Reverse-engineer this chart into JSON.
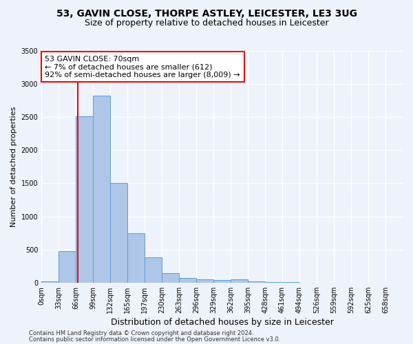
{
  "title1": "53, GAVIN CLOSE, THORPE ASTLEY, LEICESTER, LE3 3UG",
  "title2": "Size of property relative to detached houses in Leicester",
  "xlabel": "Distribution of detached houses by size in Leicester",
  "ylabel": "Number of detached properties",
  "categories": [
    "0sqm",
    "33sqm",
    "66sqm",
    "99sqm",
    "132sqm",
    "165sqm",
    "197sqm",
    "230sqm",
    "263sqm",
    "296sqm",
    "329sqm",
    "362sqm",
    "395sqm",
    "428sqm",
    "461sqm",
    "494sqm",
    "526sqm",
    "559sqm",
    "592sqm",
    "625sqm",
    "658sqm"
  ],
  "bar_heights": [
    20,
    480,
    2510,
    2820,
    1510,
    750,
    380,
    145,
    75,
    55,
    40,
    45,
    20,
    10,
    5,
    3,
    2,
    1,
    1,
    0,
    0
  ],
  "bar_color": "#aec6e8",
  "bar_edgecolor": "#5a9fd4",
  "ylim": [
    0,
    3500
  ],
  "yticks": [
    0,
    500,
    1000,
    1500,
    2000,
    2500,
    3000,
    3500
  ],
  "annotation_box_text": "53 GAVIN CLOSE: 70sqm\n← 7% of detached houses are smaller (612)\n92% of semi-detached houses are larger (8,009) →",
  "footer1": "Contains HM Land Registry data © Crown copyright and database right 2024.",
  "footer2": "Contains public sector information licensed under the Open Government Licence v3.0.",
  "bg_color": "#eef2fb",
  "plot_bg_color": "#eef2fb",
  "grid_color": "#ffffff",
  "title1_fontsize": 10,
  "title2_fontsize": 9,
  "ylabel_fontsize": 8,
  "xlabel_fontsize": 9,
  "tick_fontsize": 7,
  "footer_fontsize": 6,
  "annot_fontsize": 8
}
